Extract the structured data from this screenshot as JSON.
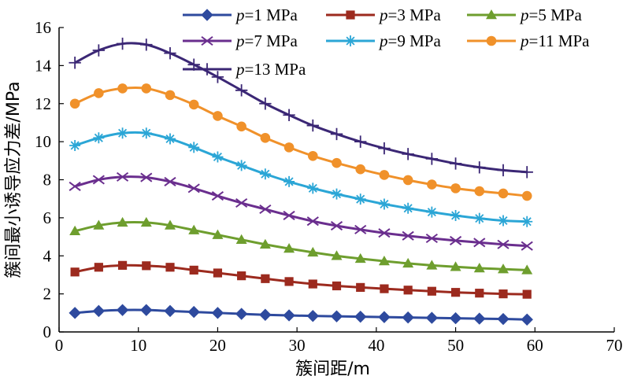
{
  "chart_data": {
    "type": "line",
    "xlabel": "簇间距/m",
    "ylabel": "簇间最小诱导应力差/MPa",
    "xlim": [
      0,
      70
    ],
    "ylim": [
      0,
      16
    ],
    "xticks": [
      0,
      10,
      20,
      30,
      40,
      50,
      60,
      70
    ],
    "yticks": [
      0,
      2,
      4,
      6,
      8,
      10,
      12,
      14,
      16
    ],
    "grid": false,
    "legend_position": "top-right",
    "x": [
      2,
      5,
      8,
      11,
      14,
      17,
      20,
      23,
      26,
      29,
      32,
      35,
      38,
      41,
      44,
      47,
      50,
      53,
      56,
      59
    ],
    "series": [
      {
        "name": "p=1 MPa",
        "color": "#2E4A9E",
        "marker": "diamond",
        "values": [
          1.0,
          1.1,
          1.15,
          1.15,
          1.1,
          1.05,
          1.0,
          0.95,
          0.9,
          0.87,
          0.84,
          0.82,
          0.8,
          0.78,
          0.76,
          0.74,
          0.72,
          0.7,
          0.68,
          0.65
        ]
      },
      {
        "name": "p=3 MPa",
        "color": "#9C2A1E",
        "marker": "square",
        "values": [
          3.15,
          3.4,
          3.5,
          3.48,
          3.4,
          3.25,
          3.1,
          2.95,
          2.8,
          2.65,
          2.52,
          2.42,
          2.34,
          2.27,
          2.2,
          2.14,
          2.08,
          2.04,
          2.0,
          1.98
        ]
      },
      {
        "name": "p=5 MPa",
        "color": "#6E9E2E",
        "marker": "triangle",
        "values": [
          5.3,
          5.6,
          5.75,
          5.75,
          5.6,
          5.35,
          5.1,
          4.85,
          4.6,
          4.38,
          4.18,
          4.0,
          3.85,
          3.72,
          3.6,
          3.5,
          3.42,
          3.35,
          3.3,
          3.25
        ]
      },
      {
        "name": "p=7 MPa",
        "color": "#6A2E8E",
        "marker": "x",
        "values": [
          7.65,
          8.0,
          8.15,
          8.12,
          7.9,
          7.55,
          7.15,
          6.78,
          6.45,
          6.12,
          5.82,
          5.58,
          5.38,
          5.2,
          5.05,
          4.92,
          4.8,
          4.7,
          4.6,
          4.52
        ]
      },
      {
        "name": "p=9 MPa",
        "color": "#2BA6D6",
        "marker": "asterisk",
        "values": [
          9.8,
          10.2,
          10.45,
          10.45,
          10.15,
          9.7,
          9.2,
          8.75,
          8.3,
          7.9,
          7.55,
          7.25,
          6.98,
          6.72,
          6.5,
          6.3,
          6.12,
          5.97,
          5.85,
          5.8
        ]
      },
      {
        "name": "p=11 MPa",
        "color": "#F0912A",
        "marker": "circle",
        "values": [
          12.0,
          12.55,
          12.8,
          12.8,
          12.45,
          11.95,
          11.35,
          10.8,
          10.2,
          9.7,
          9.25,
          8.88,
          8.55,
          8.25,
          7.98,
          7.75,
          7.55,
          7.4,
          7.28,
          7.15
        ]
      },
      {
        "name": "p=13 MPa",
        "color": "#3B2775",
        "marker": "plus",
        "values": [
          14.15,
          14.8,
          15.15,
          15.1,
          14.65,
          14.05,
          13.4,
          12.7,
          12.0,
          11.4,
          10.85,
          10.4,
          10.0,
          9.65,
          9.35,
          9.1,
          8.85,
          8.65,
          8.5,
          8.4
        ]
      }
    ]
  }
}
